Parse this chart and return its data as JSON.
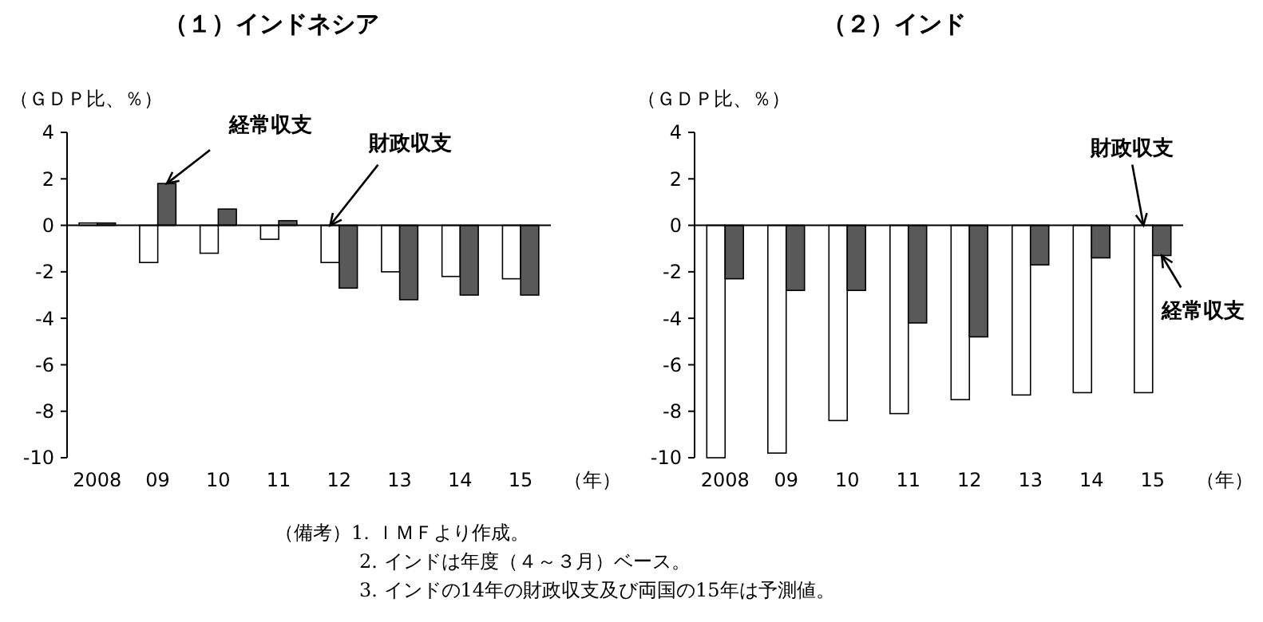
{
  "chart_data": [
    {
      "type": "bar",
      "title": "（１）インドネシア",
      "ylabel": "（ＧＤＰ比、％）",
      "xlabel": "（年）",
      "categories": [
        "2008",
        "09",
        "10",
        "11",
        "12",
        "13",
        "14",
        "15"
      ],
      "series": [
        {
          "name": "財政収支",
          "color": "#ffffff",
          "values": [
            0.1,
            -1.6,
            -1.2,
            -0.6,
            -1.6,
            -2.0,
            -2.2,
            -2.3
          ]
        },
        {
          "name": "経常収支",
          "color": "#595959",
          "values": [
            0.1,
            1.8,
            0.7,
            0.2,
            -2.7,
            -3.2,
            -3.0,
            -3.0
          ]
        }
      ],
      "ylim": [
        -10,
        4
      ],
      "yticks": [
        -10,
        -8,
        -6,
        -4,
        -2,
        0,
        2,
        4
      ],
      "annotations": [
        "（備考）1. ＩＭＦより作成。",
        "2. インドは年度（４～３月）ベース。",
        "3. インドの14年の財政収支及び両国の15年は予測値。"
      ]
    },
    {
      "type": "bar",
      "title": "（２）インド",
      "ylabel": "（ＧＤＰ比、％）",
      "xlabel": "（年）",
      "categories": [
        "2008",
        "09",
        "10",
        "11",
        "12",
        "13",
        "14",
        "15"
      ],
      "series": [
        {
          "name": "財政収支",
          "color": "#ffffff",
          "values": [
            -10.0,
            -9.8,
            -8.4,
            -8.1,
            -7.5,
            -7.3,
            -7.2,
            -7.2
          ]
        },
        {
          "name": "経常収支",
          "color": "#595959",
          "values": [
            -2.3,
            -2.8,
            -2.8,
            -4.2,
            -4.8,
            -1.7,
            -1.4,
            -1.3
          ]
        }
      ],
      "ylim": [
        -10,
        4
      ],
      "yticks": [
        -10,
        -8,
        -6,
        -4,
        -2,
        0,
        2,
        4
      ]
    }
  ]
}
